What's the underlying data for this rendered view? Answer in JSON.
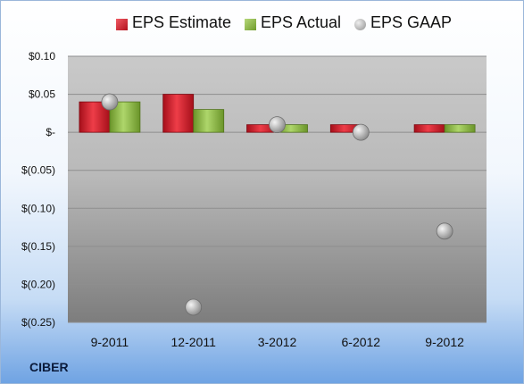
{
  "chart_data": {
    "type": "bar",
    "categories": [
      "9-2011",
      "12-2011",
      "3-2012",
      "6-2012",
      "9-2012"
    ],
    "series": [
      {
        "name": "EPS Estimate",
        "kind": "bar",
        "color": "#cc1f2b",
        "values": [
          0.04,
          0.05,
          0.01,
          0.01,
          0.01
        ]
      },
      {
        "name": "EPS Actual",
        "kind": "bar",
        "color": "#8bb543",
        "values": [
          0.04,
          0.03,
          0.01,
          null,
          0.01
        ]
      },
      {
        "name": "EPS GAAP",
        "kind": "scatter",
        "color": "#9a9a9a",
        "values": [
          0.04,
          -0.23,
          0.01,
          0.0,
          -0.13
        ]
      }
    ],
    "yticks": [
      {
        "value": 0.1,
        "label": "$0.10"
      },
      {
        "value": 0.05,
        "label": "$0.05"
      },
      {
        "value": 0.0,
        "label": "$-"
      },
      {
        "value": -0.05,
        "label": "$(0.05)"
      },
      {
        "value": -0.1,
        "label": "$(0.10)"
      },
      {
        "value": -0.15,
        "label": "$(0.15)"
      },
      {
        "value": -0.2,
        "label": "$(0.20)"
      },
      {
        "value": -0.25,
        "label": "$(0.25)"
      }
    ],
    "ylim": [
      -0.25,
      0.1
    ],
    "grid": true,
    "legend": "top-center"
  },
  "company": "CIBER"
}
